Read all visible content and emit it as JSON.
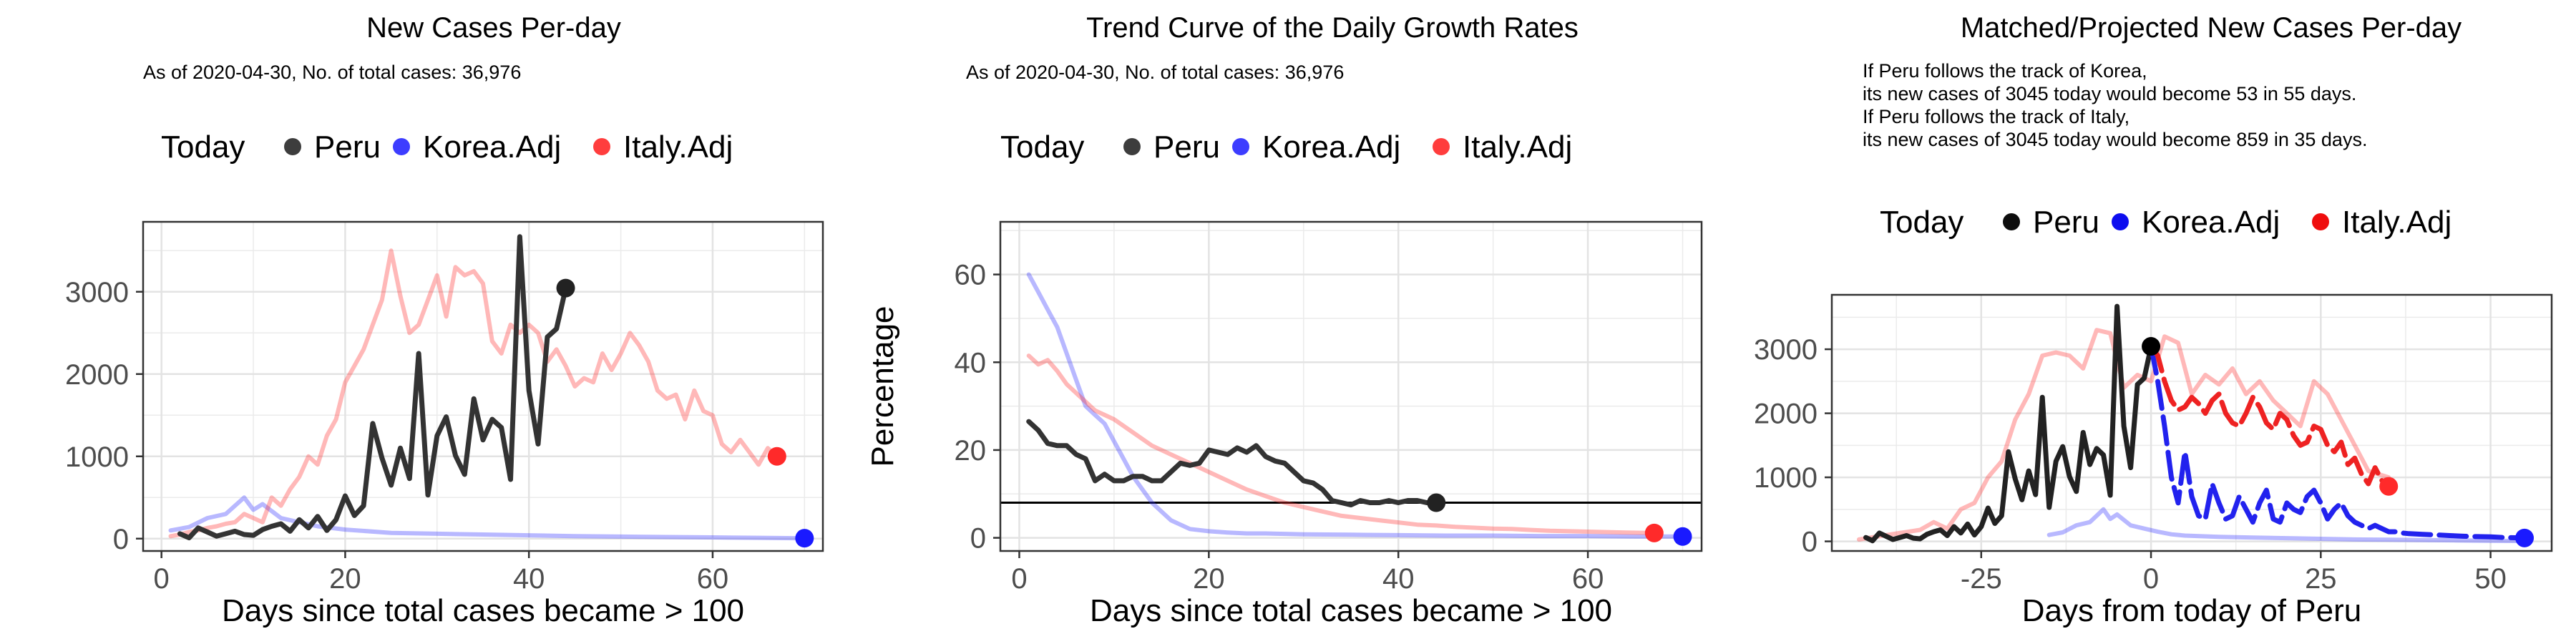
{
  "chart_data": [
    {
      "type": "line",
      "title": "New Cases Per-day",
      "subtitle": "As of 2020-04-30, No. of total cases: 36,976",
      "legend_title": "Today",
      "legend_position": "top",
      "xlabel": "Days since total cases became > 100",
      "ylabel": "",
      "xlim": [
        -2,
        72
      ],
      "ylim": [
        -150,
        3850
      ],
      "xticks": [
        0,
        20,
        40,
        60
      ],
      "yticks": [
        0,
        1000,
        2000,
        3000
      ],
      "grid": true,
      "series": [
        {
          "name": "Peru",
          "color": "#333333",
          "alpha": 1.0,
          "x": [
            2,
            3,
            4,
            5,
            6,
            7,
            8,
            9,
            10,
            11,
            12,
            13,
            14,
            15,
            16,
            17,
            18,
            19,
            20,
            21,
            22,
            23,
            24,
            25,
            26,
            27,
            28,
            29,
            30,
            31,
            32,
            33,
            34,
            35,
            36,
            37,
            38,
            39,
            40,
            41,
            42,
            43,
            44
          ],
          "y": [
            60,
            10,
            130,
            80,
            30,
            60,
            90,
            50,
            40,
            110,
            150,
            180,
            90,
            230,
            130,
            270,
            100,
            230,
            520,
            280,
            400,
            1400,
            980,
            650,
            1100,
            730,
            2250,
            530,
            1250,
            1480,
            1010,
            780,
            1700,
            1200,
            1450,
            1350,
            720,
            3670,
            1800,
            1150,
            2450,
            2550,
            3040
          ],
          "today": {
            "x": 44,
            "y": 3045
          }
        },
        {
          "name": "Korea.Adj",
          "color": "#3333ff",
          "alpha": 0.35,
          "x": [
            1,
            3,
            5,
            7,
            9,
            10,
            11,
            13,
            15,
            17,
            20,
            25,
            30,
            35,
            40,
            45,
            50,
            55,
            60,
            65,
            70
          ],
          "y": [
            100,
            140,
            250,
            300,
            500,
            350,
            420,
            250,
            200,
            150,
            110,
            70,
            60,
            50,
            40,
            30,
            25,
            20,
            15,
            10,
            5
          ],
          "today": {
            "x": 70,
            "y": 5
          }
        },
        {
          "name": "Italy.Adj",
          "color": "#ff3333",
          "alpha": 0.35,
          "x": [
            1,
            2,
            3,
            4,
            5,
            6,
            7,
            8,
            9,
            10,
            11,
            12,
            13,
            14,
            15,
            16,
            17,
            18,
            19,
            20,
            21,
            22,
            23,
            24,
            25,
            26,
            27,
            28,
            29,
            30,
            31,
            32,
            33,
            34,
            35,
            36,
            37,
            38,
            39,
            40,
            41,
            42,
            43,
            44,
            45,
            46,
            47,
            48,
            49,
            50,
            51,
            52,
            53,
            54,
            55,
            56,
            57,
            58,
            59,
            60,
            61,
            62,
            63,
            64,
            65,
            66,
            67
          ],
          "y": [
            30,
            50,
            80,
            100,
            130,
            150,
            180,
            200,
            300,
            250,
            200,
            500,
            400,
            600,
            750,
            1000,
            900,
            1250,
            1450,
            1900,
            2100,
            2300,
            2600,
            2900,
            3500,
            2950,
            2500,
            2600,
            2900,
            3200,
            2700,
            3300,
            3200,
            3250,
            3100,
            2400,
            2250,
            2600,
            2500,
            2600,
            2500,
            2150,
            2300,
            2100,
            1850,
            1950,
            1900,
            2250,
            2050,
            2250,
            2500,
            2350,
            2150,
            1800,
            1700,
            1750,
            1450,
            1800,
            1550,
            1500,
            1150,
            1050,
            1200,
            1050,
            900,
            1100,
            1000
          ],
          "today": {
            "x": 67,
            "y": 1000
          }
        }
      ]
    },
    {
      "type": "line",
      "title": "Trend Curve of the Daily Growth Rates",
      "subtitle": "As of 2020-04-30, No. of total cases: 36,976",
      "legend_title": "Today",
      "legend_position": "top",
      "xlabel": "Days since total cases became > 100",
      "ylabel": "Percentage",
      "xlim": [
        -2,
        72
      ],
      "ylim": [
        -3,
        72
      ],
      "xticks": [
        0,
        20,
        40,
        60
      ],
      "yticks": [
        0,
        20,
        40,
        60
      ],
      "grid": true,
      "hline": 8,
      "series": [
        {
          "name": "Peru",
          "color": "#333333",
          "alpha": 1.0,
          "x": [
            1,
            2,
            3,
            4,
            5,
            6,
            7,
            8,
            9,
            10,
            11,
            12,
            13,
            14,
            15,
            16,
            17,
            18,
            19,
            20,
            21,
            22,
            23,
            24,
            25,
            26,
            27,
            28,
            29,
            30,
            31,
            32,
            33,
            34,
            35,
            36,
            37,
            38,
            39,
            40,
            41,
            42,
            43,
            44
          ],
          "y": [
            26.5,
            24.5,
            21.5,
            21,
            21,
            19,
            18,
            13,
            14.5,
            13,
            13,
            14,
            14,
            13,
            13,
            15,
            17,
            16.5,
            17,
            20,
            19.5,
            19,
            20.5,
            19.5,
            21,
            18.5,
            17.5,
            17,
            15,
            13,
            12.5,
            11,
            8.5,
            8,
            7.5,
            8.5,
            8,
            8,
            8.5,
            8,
            8.5,
            8.5,
            8,
            8
          ],
          "today": {
            "x": 44,
            "y": 8
          }
        },
        {
          "name": "Korea.Adj",
          "color": "#3333ff",
          "alpha": 0.35,
          "x": [
            1,
            2,
            3,
            4,
            5,
            6,
            7,
            8,
            9,
            10,
            11,
            12,
            13,
            14,
            15,
            16,
            17,
            18,
            20,
            22,
            24,
            26,
            28,
            30,
            35,
            40,
            45,
            50,
            55,
            60,
            65,
            70
          ],
          "y": [
            60,
            56,
            52,
            48,
            42,
            36,
            30,
            28,
            26,
            22,
            18,
            14,
            11,
            8,
            6,
            4,
            3,
            2,
            1.5,
            1.2,
            1,
            1,
            0.9,
            0.8,
            0.7,
            0.6,
            0.5,
            0.5,
            0.4,
            0.4,
            0.3,
            0.3
          ],
          "today": {
            "x": 70,
            "y": 0.3
          }
        },
        {
          "name": "Italy.Adj",
          "color": "#ff3333",
          "alpha": 0.35,
          "x": [
            1,
            2,
            3,
            4,
            5,
            6,
            7,
            8,
            9,
            10,
            12,
            14,
            16,
            18,
            20,
            22,
            24,
            26,
            28,
            30,
            32,
            34,
            36,
            38,
            40,
            42,
            44,
            46,
            48,
            50,
            52,
            54,
            56,
            58,
            60,
            62,
            64,
            67
          ],
          "y": [
            41.5,
            39.5,
            40.5,
            38,
            35,
            33,
            31,
            29,
            28,
            27,
            24,
            21,
            19,
            17,
            15,
            13,
            11,
            9.5,
            8,
            7,
            6,
            5,
            4.5,
            4,
            3.5,
            3,
            2.8,
            2.5,
            2.3,
            2.1,
            2,
            1.8,
            1.6,
            1.5,
            1.4,
            1.3,
            1.2,
            1.1
          ],
          "today": {
            "x": 67,
            "y": 1.1
          }
        }
      ]
    },
    {
      "type": "line",
      "title": "Matched/Projected New Cases Per-day",
      "notes": [
        "If Peru follows the track of Korea,",
        "its new cases of 3045 today would become 53 in 55 days.",
        "If Peru follows the track of Italy,",
        "its new cases of 3045 today would become 859 in 35 days."
      ],
      "legend_title": "Today",
      "legend_position": "top",
      "xlabel": "Days from today of Peru",
      "ylabel": "",
      "xlim": [
        -47,
        59
      ],
      "ylim": [
        -150,
        3850
      ],
      "xticks": [
        -25,
        0,
        25,
        50
      ],
      "yticks": [
        0,
        1000,
        2000,
        3000
      ],
      "grid": true,
      "series": [
        {
          "name": "Peru",
          "color": "#222222",
          "alpha": 1.0,
          "x": [
            -42,
            -41,
            -40,
            -39,
            -38,
            -37,
            -36,
            -35,
            -34,
            -33,
            -32,
            -31,
            -30,
            -29,
            -28,
            -27,
            -26,
            -25,
            -24,
            -23,
            -22,
            -21,
            -20,
            -19,
            -18,
            -17,
            -16,
            -15,
            -14,
            -13,
            -12,
            -11,
            -10,
            -9,
            -8,
            -7,
            -6,
            -5,
            -4,
            -3,
            -2,
            -1,
            0
          ],
          "y": [
            60,
            10,
            130,
            80,
            30,
            60,
            90,
            50,
            40,
            110,
            150,
            180,
            90,
            230,
            130,
            270,
            100,
            230,
            520,
            280,
            400,
            1400,
            980,
            650,
            1100,
            730,
            2250,
            530,
            1250,
            1480,
            1010,
            780,
            1700,
            1200,
            1450,
            1350,
            720,
            3670,
            1800,
            1150,
            2450,
            2550,
            3040
          ],
          "today": {
            "x": 0,
            "y": 3045
          }
        },
        {
          "name": "Korea.Adj (matched)",
          "color": "#3333ff",
          "alpha": 0.35,
          "x": [
            -15,
            -13,
            -11,
            -9,
            -7,
            -6,
            -5,
            -3,
            -1,
            1,
            3,
            5,
            10,
            15,
            20,
            25,
            30,
            35,
            40,
            45,
            50,
            55
          ],
          "y": [
            100,
            140,
            250,
            300,
            500,
            350,
            420,
            250,
            200,
            150,
            110,
            90,
            70,
            60,
            50,
            40,
            30,
            25,
            20,
            15,
            10,
            5
          ]
        },
        {
          "name": "Korea.Adj",
          "color": "#2222ee",
          "alpha": 1.0,
          "dashed": true,
          "x": [
            0,
            1,
            2,
            3,
            4,
            5,
            6,
            7,
            8,
            9,
            10,
            11,
            12,
            13,
            14,
            15,
            16,
            17,
            18,
            19,
            20,
            21,
            22,
            23,
            24,
            25,
            26,
            27,
            28,
            29,
            30,
            31,
            32,
            33,
            34,
            35,
            36,
            37,
            38,
            40,
            42,
            44,
            46,
            48,
            50,
            52,
            55
          ],
          "y": [
            3045,
            2500,
            1800,
            1000,
            600,
            1400,
            700,
            400,
            350,
            900,
            600,
            350,
            400,
            700,
            500,
            300,
            600,
            800,
            350,
            300,
            600,
            500,
            450,
            700,
            800,
            600,
            350,
            500,
            600,
            400,
            300,
            250,
            200,
            250,
            200,
            150,
            150,
            130,
            120,
            110,
            100,
            90,
            80,
            75,
            70,
            60,
            53
          ],
          "today": {
            "x": 55,
            "y": 53
          }
        },
        {
          "name": "Italy.Adj (matched)",
          "color": "#ff3333",
          "alpha": 0.35,
          "x": [
            -43,
            -40,
            -37,
            -34,
            -32,
            -30,
            -28,
            -26,
            -24,
            -22,
            -20,
            -18,
            -16,
            -14,
            -12,
            -10,
            -8,
            -6,
            -4,
            -2,
            0,
            2,
            4,
            6,
            8,
            10,
            12,
            14,
            16,
            18,
            20,
            22,
            24,
            26,
            28,
            30,
            32,
            35
          ],
          "y": [
            30,
            80,
            130,
            180,
            300,
            200,
            500,
            600,
            1000,
            1250,
            1900,
            2300,
            2900,
            2950,
            2900,
            2700,
            3300,
            3250,
            2400,
            2600,
            2500,
            3200,
            3100,
            2300,
            2600,
            2450,
            2700,
            2300,
            2500,
            2200,
            2000,
            1800,
            2500,
            2300,
            1900,
            1500,
            1100,
            1000
          ]
        },
        {
          "name": "Italy.Adj",
          "color": "#ee2222",
          "alpha": 1.0,
          "dashed": true,
          "x": [
            0,
            1,
            2,
            3,
            4,
            5,
            6,
            7,
            8,
            9,
            10,
            11,
            12,
            13,
            14,
            15,
            16,
            17,
            18,
            19,
            20,
            21,
            22,
            23,
            24,
            25,
            26,
            27,
            28,
            29,
            30,
            31,
            32,
            33,
            34,
            35
          ],
          "y": [
            3045,
            2900,
            2500,
            2200,
            2050,
            2100,
            2250,
            2150,
            2000,
            2200,
            2300,
            2000,
            1850,
            1800,
            2000,
            2250,
            2100,
            1850,
            1750,
            2000,
            1900,
            1650,
            1500,
            1550,
            1800,
            1750,
            1500,
            1400,
            1550,
            1200,
            1300,
            1050,
            900,
            1150,
            950,
            859
          ],
          "today": {
            "x": 35,
            "y": 859
          }
        }
      ]
    }
  ]
}
